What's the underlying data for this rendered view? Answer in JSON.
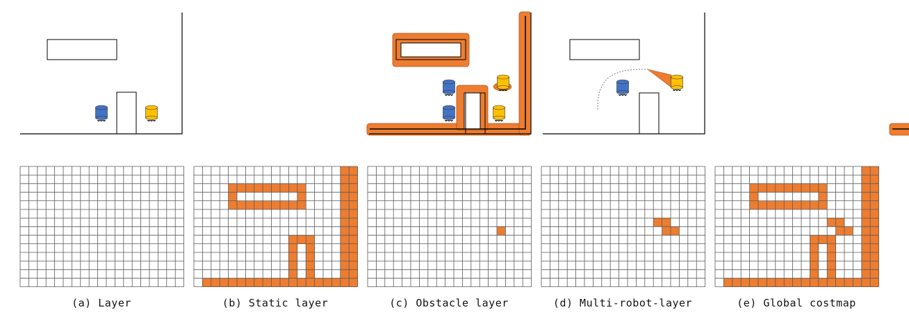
{
  "figure": {
    "colors": {
      "costmap": "#ed7d31",
      "costmap_edge": "#b2521a",
      "robot_blue": "#4472c4",
      "robot_yellow": "#ffc000",
      "wall": "#000000",
      "grid_line": "#595959"
    },
    "grid": {
      "cols": 19,
      "rows": 14
    },
    "panels": [
      {
        "id": "a",
        "caption": "(a) Layer",
        "scene": {
          "static_outline": true,
          "static_costmap": false,
          "robots_moved": false,
          "yellow_inflated": false,
          "yellow_trail": false
        },
        "occupied_cells": []
      },
      {
        "id": "b",
        "caption": "(b) Static layer",
        "scene": {
          "static_outline": true,
          "static_costmap": true,
          "robots_moved": false,
          "yellow_inflated": false,
          "yellow_trail": false
        },
        "occupied_cells": "static"
      },
      {
        "id": "c",
        "caption": "(c) Obstacle layer",
        "scene": {
          "static_outline": true,
          "static_costmap": false,
          "robots_moved": true,
          "yellow_inflated": true,
          "yellow_trail": false
        },
        "occupied_cells": [
          [
            15,
            7
          ]
        ]
      },
      {
        "id": "d",
        "caption": "(d) Multi-robot-layer",
        "scene": {
          "static_outline": true,
          "static_costmap": false,
          "robots_moved": true,
          "yellow_inflated": false,
          "yellow_trail": true
        },
        "occupied_cells": [
          [
            13,
            6
          ],
          [
            14,
            6
          ],
          [
            14,
            7
          ],
          [
            15,
            7
          ]
        ]
      },
      {
        "id": "e",
        "caption": "(e) Global costmap",
        "scene": {
          "static_outline": true,
          "static_costmap": true,
          "robots_moved": true,
          "yellow_inflated": true,
          "yellow_trail": true
        },
        "occupied_cells": "global"
      }
    ],
    "static_cells": {
      "right_wall_col": 17,
      "right_wall_extra_col": 18,
      "floor_row": 13,
      "floor_from_col": 1,
      "box_rows": [
        2,
        3,
        4
      ],
      "box_cols": [
        4,
        5,
        6,
        7,
        8,
        9,
        10,
        11,
        12
      ],
      "pillar_cols": [
        10,
        11,
        12
      ],
      "pillar_rows": [
        8,
        9,
        10,
        11,
        12
      ]
    }
  }
}
